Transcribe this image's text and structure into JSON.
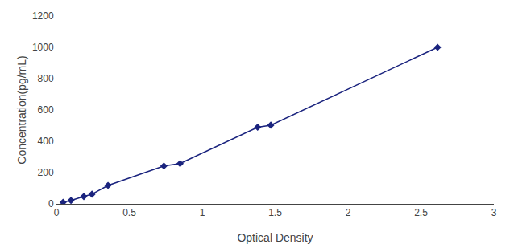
{
  "chart_data": {
    "type": "line",
    "x": [
      0.046,
      0.1,
      0.188,
      0.244,
      0.354,
      0.737,
      0.848,
      1.38,
      1.47,
      2.614
    ],
    "values": [
      10,
      22,
      47,
      62,
      118,
      242,
      258,
      490,
      503,
      1000
    ],
    "color": "#1a237e",
    "marker": "diamond",
    "line_style": "solid",
    "xlabel": "Optical Density",
    "ylabel": "Concentration(pg/mL)",
    "xlim": [
      0,
      3
    ],
    "ylim": [
      0,
      1200
    ],
    "xticks": [
      0,
      0.5,
      1,
      1.5,
      2,
      2.5,
      3
    ],
    "yticks": [
      0,
      200,
      400,
      600,
      800,
      1000,
      1200
    ],
    "grid": false
  }
}
